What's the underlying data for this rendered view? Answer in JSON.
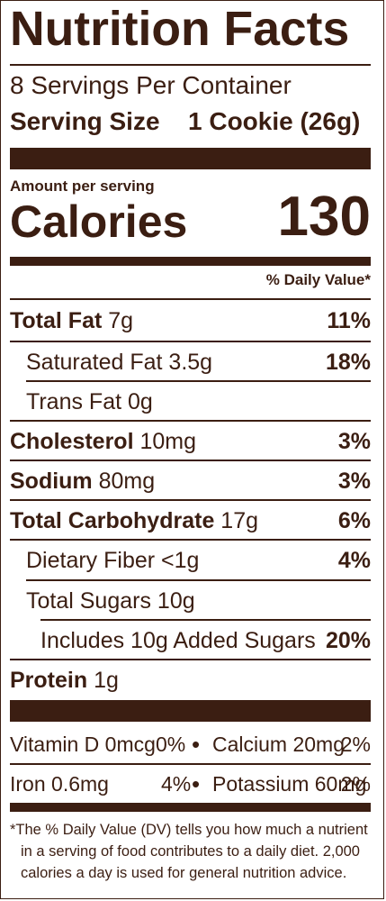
{
  "title": "Nutrition Facts",
  "servings_per_container": "8 Servings Per Container",
  "serving_size_label": "Serving Size",
  "serving_size_value": "1 Cookie (26g)",
  "amount_per_serving": "Amount per serving",
  "calories_label": "Calories",
  "calories_value": "130",
  "daily_value_header": "% Daily Value*",
  "nutrients": {
    "total_fat": {
      "name": "Total Fat",
      "amount": "7g",
      "dv": "11%"
    },
    "saturated_fat": {
      "name": "Saturated Fat 3.5g",
      "dv": "18%"
    },
    "trans_fat": {
      "name": "Trans Fat 0g"
    },
    "cholesterol": {
      "name": "Cholesterol",
      "amount": "10mg",
      "dv": "3%"
    },
    "sodium": {
      "name": "Sodium",
      "amount": "80mg",
      "dv": "3%"
    },
    "total_carbohydrate": {
      "name": "Total Carbohydrate",
      "amount": "17g",
      "dv": "6%"
    },
    "dietary_fiber": {
      "name": "Dietary Fiber <1g",
      "dv": "4%"
    },
    "total_sugars": {
      "name": "Total Sugars 10g"
    },
    "added_sugars": {
      "name": "Includes 10g Added Sugars",
      "dv": "20%"
    },
    "protein": {
      "name": "Protein",
      "amount": "1g"
    }
  },
  "vitamins": {
    "vitamin_d": {
      "name": "Vitamin D 0mcg",
      "dv": "0%"
    },
    "calcium": {
      "name": "Calcium 20mg",
      "dv": "2%"
    },
    "iron": {
      "name": "Iron 0.6mg",
      "dv": "4%"
    },
    "potassium": {
      "name": "Potassium 60mg",
      "dv": "2%"
    },
    "separator": "•"
  },
  "footnote": {
    "line1": "*The % Daily Value (DV) tells you how much a nutrient",
    "line2": "in a serving of food contributes to a daily diet. 2,000",
    "line3": "calories a day is used for general nutrition advice."
  }
}
